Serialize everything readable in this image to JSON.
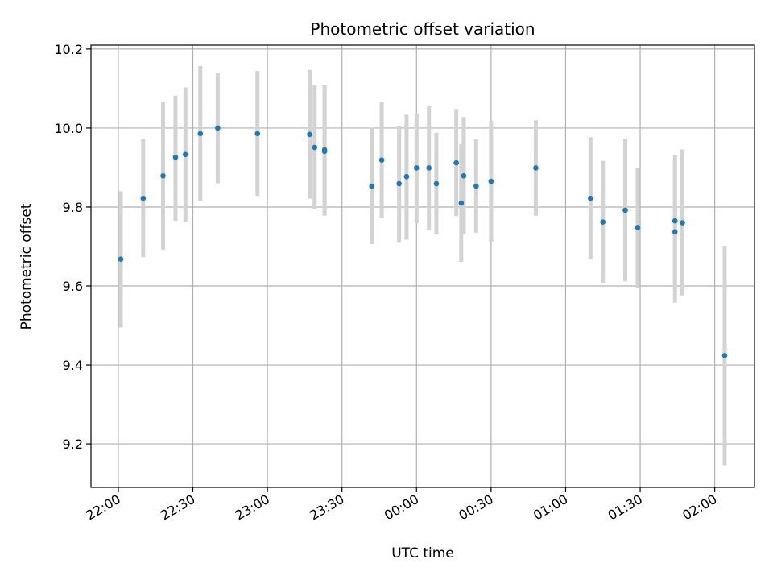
{
  "chart_data": {
    "type": "scatter",
    "title": "Photometric offset variation",
    "xlabel": "UTC time",
    "ylabel": "Photometric offset",
    "x_axis": {
      "scale": "time",
      "range": [
        "21:49",
        "02:16"
      ],
      "ticks": [
        {
          "time": "22:00",
          "label": "22:00"
        },
        {
          "time": "22:30",
          "label": "22:30"
        },
        {
          "time": "23:00",
          "label": "23:00"
        },
        {
          "time": "23:30",
          "label": "23:30"
        },
        {
          "time": "00:00",
          "label": "00:00"
        },
        {
          "time": "00:30",
          "label": "00:30"
        },
        {
          "time": "01:00",
          "label": "01:00"
        },
        {
          "time": "01:30",
          "label": "01:30"
        },
        {
          "time": "02:00",
          "label": "02:00"
        }
      ],
      "tick_label_rotation": "30deg"
    },
    "y_axis": {
      "range": [
        9.09,
        10.21
      ],
      "ticks": [
        9.2,
        9.4,
        9.6,
        9.8,
        10.0,
        10.2
      ],
      "tick_labels": [
        "9.2",
        "9.4",
        "9.6",
        "9.8",
        "10.0",
        "10.2"
      ]
    },
    "grid": true,
    "point_color": "#1f77b4",
    "errorbar_color": "#d3d3d3",
    "points": [
      {
        "time": "22:01",
        "y": 9.668,
        "low": 9.495,
        "high": 9.84
      },
      {
        "time": "22:10",
        "y": 9.822,
        "low": 9.673,
        "high": 9.972
      },
      {
        "time": "22:18",
        "y": 9.879,
        "low": 9.692,
        "high": 10.066
      },
      {
        "time": "22:23",
        "y": 9.926,
        "low": 9.765,
        "high": 10.082
      },
      {
        "time": "22:27",
        "y": 9.933,
        "low": 9.763,
        "high": 10.103
      },
      {
        "time": "22:33",
        "y": 9.986,
        "low": 9.816,
        "high": 10.157
      },
      {
        "time": "22:40",
        "y": 10.0,
        "low": 9.86,
        "high": 10.139
      },
      {
        "time": "22:56",
        "y": 9.986,
        "low": 9.828,
        "high": 10.145
      },
      {
        "time": "23:17",
        "y": 9.984,
        "low": 9.821,
        "high": 10.147
      },
      {
        "time": "23:19",
        "y": 9.951,
        "low": 9.795,
        "high": 10.108
      },
      {
        "time": "23:23",
        "y": 9.945,
        "low": 9.781,
        "high": 10.108
      },
      {
        "time": "23:23",
        "y": 9.941,
        "low": 9.778,
        "high": 10.106
      },
      {
        "time": "23:42",
        "y": 9.853,
        "low": 9.706,
        "high": 10.001
      },
      {
        "time": "23:46",
        "y": 9.919,
        "low": 9.772,
        "high": 10.066
      },
      {
        "time": "23:53",
        "y": 9.859,
        "low": 9.71,
        "high": 10.004
      },
      {
        "time": "23:56",
        "y": 9.877,
        "low": 9.717,
        "high": 10.034
      },
      {
        "time": "00:00",
        "y": 9.899,
        "low": 9.759,
        "high": 10.037
      },
      {
        "time": "00:05",
        "y": 9.899,
        "low": 9.743,
        "high": 10.055
      },
      {
        "time": "00:08",
        "y": 9.859,
        "low": 9.731,
        "high": 9.988
      },
      {
        "time": "00:16",
        "y": 9.912,
        "low": 9.777,
        "high": 10.048
      },
      {
        "time": "00:18",
        "y": 9.81,
        "low": 9.661,
        "high": 9.959
      },
      {
        "time": "00:19",
        "y": 9.879,
        "low": 9.731,
        "high": 10.028
      },
      {
        "time": "00:24",
        "y": 9.853,
        "low": 9.735,
        "high": 9.972
      },
      {
        "time": "00:30",
        "y": 9.865,
        "low": 9.712,
        "high": 10.018
      },
      {
        "time": "00:48",
        "y": 9.899,
        "low": 9.778,
        "high": 10.02
      },
      {
        "time": "01:10",
        "y": 9.822,
        "low": 9.668,
        "high": 9.977
      },
      {
        "time": "01:15",
        "y": 9.762,
        "low": 9.608,
        "high": 9.917
      },
      {
        "time": "01:24",
        "y": 9.792,
        "low": 9.612,
        "high": 9.972
      },
      {
        "time": "01:29",
        "y": 9.748,
        "low": 9.594,
        "high": 9.9
      },
      {
        "time": "01:44",
        "y": 9.765,
        "low": 9.597,
        "high": 9.932
      },
      {
        "time": "01:44",
        "y": 9.737,
        "low": 9.558,
        "high": 9.917
      },
      {
        "time": "01:47",
        "y": 9.76,
        "low": 9.576,
        "high": 9.946
      },
      {
        "time": "02:04",
        "y": 9.424,
        "low": 9.146,
        "high": 9.702
      }
    ]
  }
}
